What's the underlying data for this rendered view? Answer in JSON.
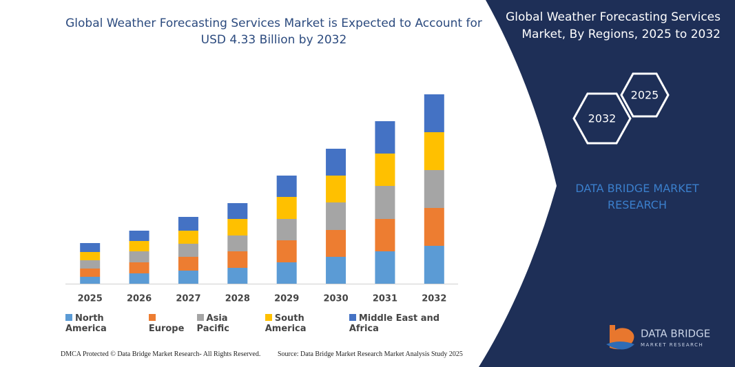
{
  "chart_data": {
    "type": "stacked-bar",
    "title": "Global Weather Forecasting Services Market is Expected to Account for USD 4.33 Billion by 2032",
    "categories": [
      "2025",
      "2026",
      "2027",
      "2028",
      "2029",
      "2030",
      "2031",
      "2032"
    ],
    "series": [
      {
        "name": "North America",
        "color": "#5b9bd5",
        "values": [
          10,
          15,
          19,
          23,
          31,
          39,
          47,
          55
        ]
      },
      {
        "name": "Europe",
        "color": "#ed7d31",
        "values": [
          12,
          16,
          20,
          24,
          32,
          39,
          47,
          55
        ]
      },
      {
        "name": "Asia Pacific",
        "color": "#a5a5a5",
        "values": [
          12,
          16,
          19,
          23,
          31,
          40,
          48,
          55
        ]
      },
      {
        "name": "South America",
        "color": "#ffc000",
        "values": [
          12,
          15,
          19,
          24,
          32,
          39,
          47,
          55
        ]
      },
      {
        "name": "Middle East and Africa",
        "color": "#4472c4",
        "values": [
          13,
          15,
          20,
          23,
          31,
          39,
          47,
          55
        ]
      }
    ],
    "ylim": [
      0,
      300
    ]
  },
  "panel": {
    "title": "Global Weather Forecasting Services Market, By Regions, 2025 to 2032",
    "hexagons": [
      "2032",
      "2025"
    ],
    "brand": "DATA BRIDGE MARKET RESEARCH"
  },
  "logo": {
    "name": "DATA BRIDGE",
    "tagline": "MARKET RESEARCH"
  },
  "footer": {
    "dmca": "DMCA Protected © Data Bridge Market Research-  All Rights Reserved.",
    "source": "Source: Data Bridge Market Research  Market Analysis Study 2025"
  }
}
